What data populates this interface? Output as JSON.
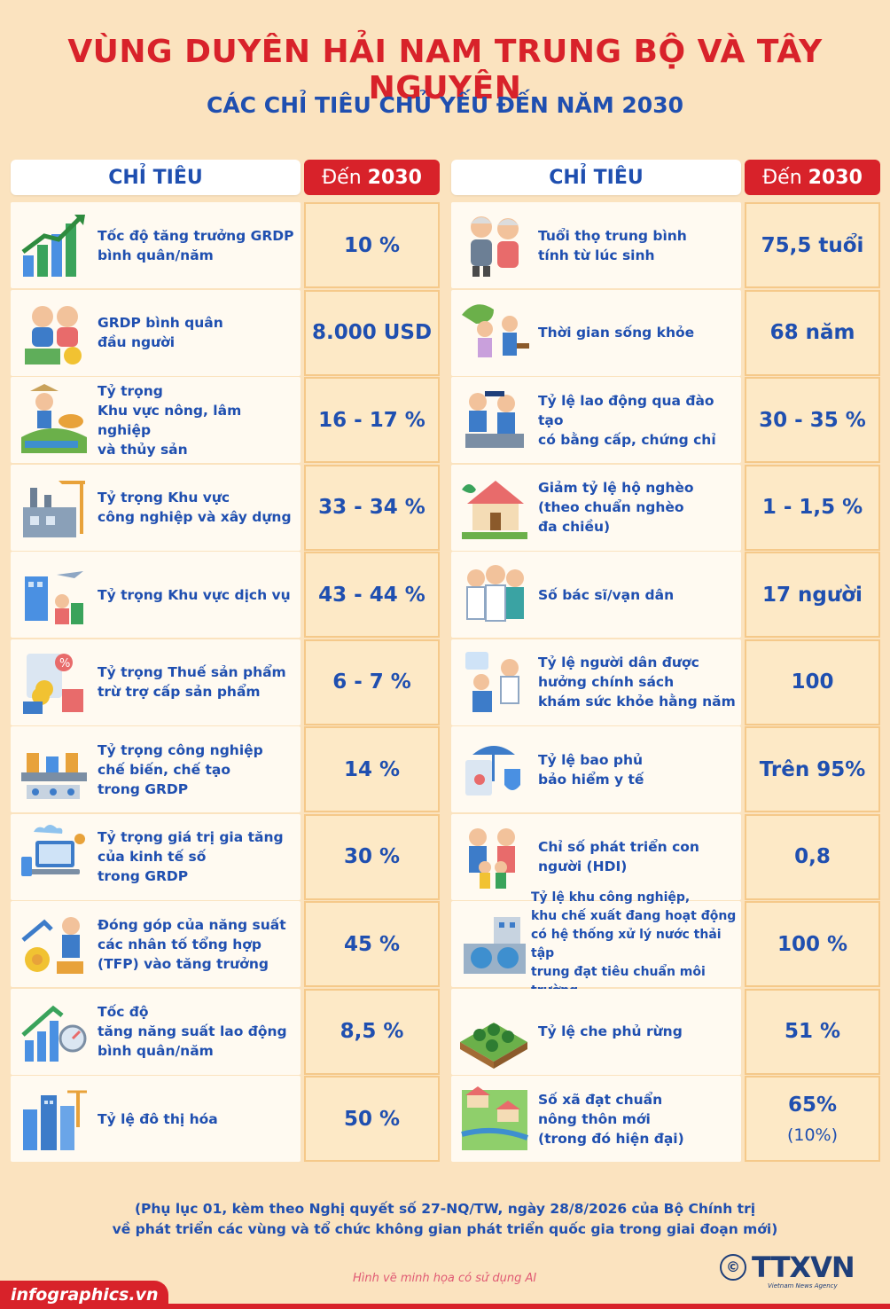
{
  "title": "VÙNG DUYÊN HẢI NAM TRUNG BỘ VÀ TÂY NGUYÊN",
  "subtitle": "CÁC CHỈ TIÊU CHỦ YẾU ĐẾN NĂM 2030",
  "header": {
    "label": "CHỈ TIÊU",
    "year_prefix": "Đến",
    "year": "2030"
  },
  "left": [
    {
      "label": "Tốc độ tăng trưởng GRDP\nbình quân/năm",
      "value": "10 %",
      "icon": "growth-chart-icon"
    },
    {
      "label": "GRDP bình quân\nđầu người",
      "value": "8.000 USD",
      "icon": "money-people-icon"
    },
    {
      "label": "Tỷ trọng\nKhu vực nông, lâm nghiệp\nvà thủy sản",
      "value": "16 - 17 %",
      "icon": "agriculture-icon"
    },
    {
      "label": "Tỷ trọng Khu vực\ncông nghiệp và xây dựng",
      "value": "33 - 34 %",
      "icon": "factory-icon"
    },
    {
      "label": "Tỷ trọng Khu vực dịch vụ",
      "value": "43 - 44 %",
      "icon": "services-icon"
    },
    {
      "label": "Tỷ trọng Thuế sản phẩm\ntrừ trợ cấp sản phẩm",
      "value": "6 - 7 %",
      "icon": "tax-icon"
    },
    {
      "label": "Tỷ trọng công nghiệp\nchế biến, chế tạo\ntrong GRDP",
      "value": "14 %",
      "icon": "manufacturing-icon"
    },
    {
      "label": "Tỷ trọng giá trị gia tăng\ncủa kinh tế số\ntrong GRDP",
      "value": "30 %",
      "icon": "digital-economy-icon"
    },
    {
      "label": "Đóng góp của năng suất\ncác nhân tố tổng hợp\n(TFP) vào tăng trưởng",
      "value": "45 %",
      "icon": "productivity-icon"
    },
    {
      "label": "Tốc độ\ntăng năng suất lao động\nbình quân/năm",
      "value": "8,5 %",
      "icon": "labor-productivity-icon"
    },
    {
      "label": "Tỷ lệ đô thị hóa",
      "value": "50 %",
      "icon": "urban-icon"
    }
  ],
  "right": [
    {
      "label": "Tuổi thọ trung bình\ntính từ lúc sinh",
      "value": "75,5 tuổi",
      "icon": "elderly-couple-icon"
    },
    {
      "label": "Thời gian sống khỏe",
      "value": "68 năm",
      "icon": "healthy-life-icon"
    },
    {
      "label": "Tỷ lệ lao động qua đào tạo\ncó bằng cấp, chứng chỉ",
      "value": "30 - 35 %",
      "icon": "trained-workers-icon"
    },
    {
      "label": "Giảm tỷ lệ hộ nghèo\n(theo chuẩn nghèo\nđa chiều)",
      "value": "1 - 1,5 %",
      "icon": "house-icon"
    },
    {
      "label": "Số bác sĩ/vạn dân",
      "value": "17 người",
      "icon": "doctors-icon"
    },
    {
      "label": "Tỷ lệ người dân được\nhưởng chính sách\nkhám sức khỏe hằng năm",
      "value": "100",
      "icon": "health-check-icon"
    },
    {
      "label": "Tỷ lệ bao phủ\nbảo hiểm y tế",
      "value": "Trên 95%",
      "icon": "insurance-icon"
    },
    {
      "label": "Chỉ số phát triển con\nngười (HDI)",
      "value": "0,8",
      "icon": "family-icon"
    },
    {
      "label": "Tỷ lệ khu công nghiệp,\nkhu chế xuất đang hoạt động\ncó hệ thống xử lý nước thải tập\ntrung đạt tiêu chuẩn môi trường",
      "value": "100 %",
      "icon": "water-treatment-icon"
    },
    {
      "label": "Tỷ lệ che phủ rừng",
      "value": "51 %",
      "icon": "forest-icon"
    },
    {
      "label": "Số xã đạt chuẩn\nnông thôn mới\n(trong đó hiện đại)",
      "value": "65%",
      "value_sub": "(10%)",
      "icon": "village-icon"
    }
  ],
  "footnote": {
    "line1": "(Phụ lục 01, kèm theo Nghị quyết số 27-NQ/TW, ngày 28/8/2026 của Bộ Chính trị",
    "line2": "về phát triển các vùng và tổ chức không gian phát triển quốc gia trong giai đoạn mới)"
  },
  "ai_note": "Hình vẽ minh họa có sử dụng AI",
  "site": "infographics.vn",
  "brand": "TTXVN",
  "brand_sub": "Vietnam News Agency",
  "colors": {
    "accent_red": "#d8222a",
    "text_blue": "#1f4fb0",
    "background": "#fbe3bf"
  }
}
